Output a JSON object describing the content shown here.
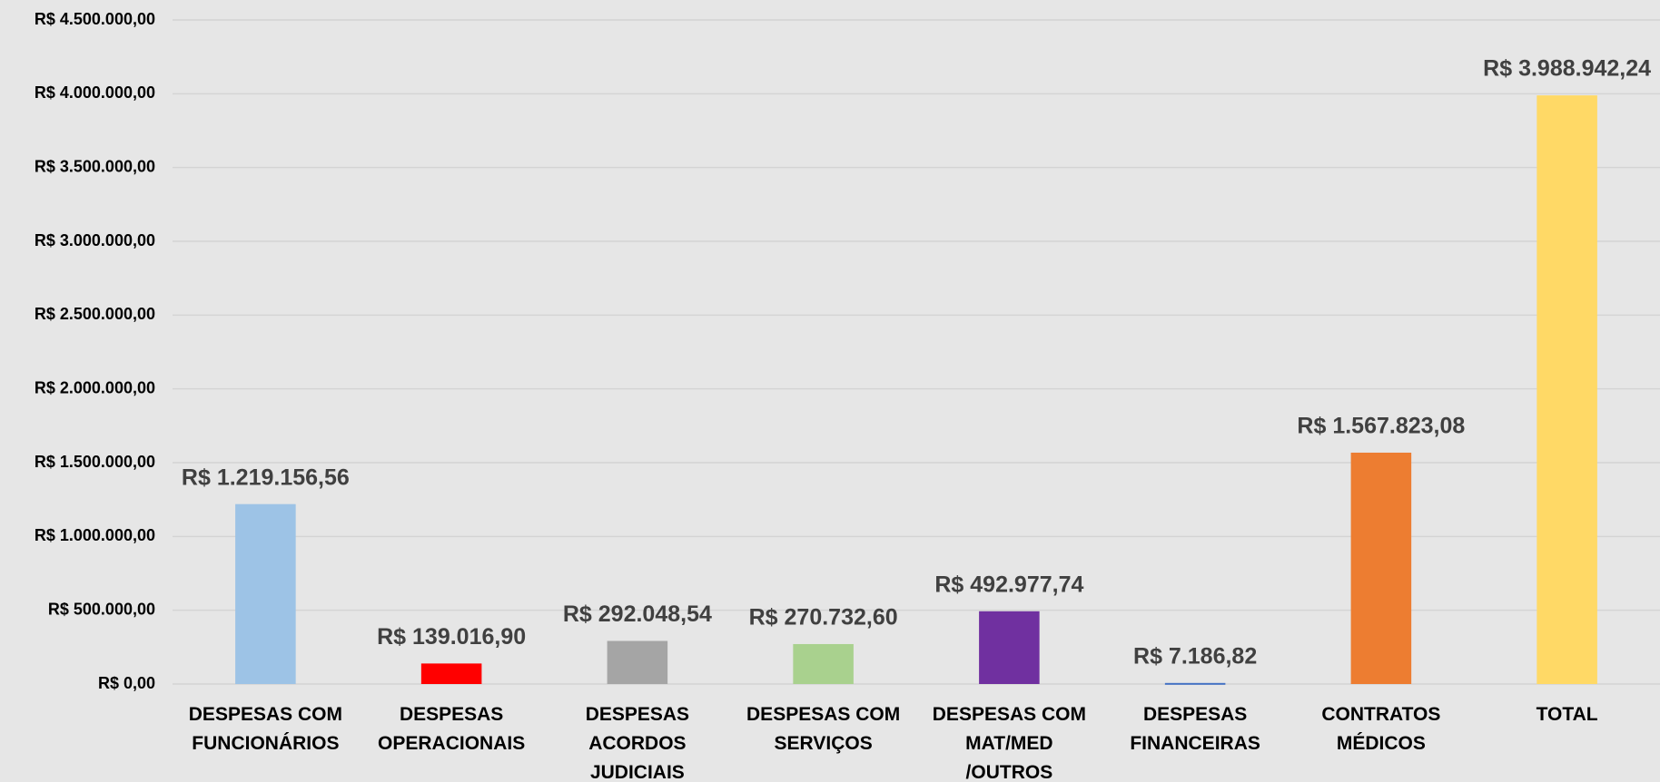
{
  "chart_data": {
    "type": "bar",
    "categories": [
      "DESPESAS COM FUNCIONÁRIOS",
      "DESPESAS OPERACIONAIS",
      "DESPESAS ACORDOS JUDICIAIS",
      "DESPESAS COM SERVIÇOS",
      "DESPESAS COM MAT/MED /OUTROS",
      "DESPESAS FINANCEIRAS",
      "CONTRATOS MÉDICOS",
      "TOTAL"
    ],
    "values": [
      1219156.56,
      139016.9,
      292048.54,
      270732.6,
      492977.74,
      7186.82,
      1567823.08,
      3988942.24
    ],
    "value_labels": [
      "R$ 1.219.156,56",
      "R$ 139.016,90",
      "R$ 292.048,54",
      "R$ 270.732,60",
      "R$ 492.977,74",
      "R$ 7.186,82",
      "R$ 1.567.823,08",
      "R$ 3.988.942,24"
    ],
    "colors": [
      "#9dc3e6",
      "#ff0000",
      "#a5a5a5",
      "#a9d18e",
      "#7030a0",
      "#4472c4",
      "#ed7d31",
      "#ffd966"
    ],
    "ylim": [
      0,
      4500000
    ],
    "yticks": [
      {
        "value": 0,
        "label": "R$ 0,00"
      },
      {
        "value": 500000,
        "label": "R$ 500.000,00"
      },
      {
        "value": 1000000,
        "label": "R$ 1.000.000,00"
      },
      {
        "value": 1500000,
        "label": "R$ 1.500.000,00"
      },
      {
        "value": 2000000,
        "label": "R$ 2.000.000,00"
      },
      {
        "value": 2500000,
        "label": "R$ 2.500.000,00"
      },
      {
        "value": 3000000,
        "label": "R$ 3.000.000,00"
      },
      {
        "value": 3500000,
        "label": "R$ 3.500.000,00"
      },
      {
        "value": 4000000,
        "label": "R$ 4.000.000,00"
      },
      {
        "value": 4500000,
        "label": "R$ 4.500.000,00"
      }
    ],
    "grid": true
  }
}
